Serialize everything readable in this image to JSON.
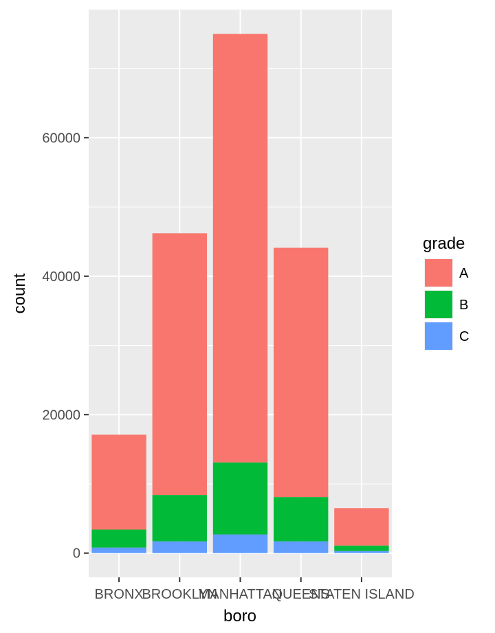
{
  "chart_data": {
    "type": "bar",
    "stacked": true,
    "xlabel": "boro",
    "ylabel": "count",
    "categories": [
      "BRONX",
      "BROOKLYN",
      "MANHATTAN",
      "QUEENS",
      "STATEN ISLAND"
    ],
    "series": [
      {
        "name": "C",
        "color": "#619CFF",
        "values": [
          800,
          1700,
          2700,
          1700,
          300
        ]
      },
      {
        "name": "B",
        "color": "#00BA38",
        "values": [
          2600,
          6700,
          10400,
          6400,
          800
        ]
      },
      {
        "name": "A",
        "color": "#F8766D",
        "values": [
          13700,
          37800,
          61900,
          36000,
          5400
        ]
      }
    ],
    "ylim": [
      -3500,
      78500
    ],
    "yticks": [
      0,
      20000,
      40000,
      60000
    ],
    "ytick_labels": [
      "0",
      "20000",
      "40000",
      "60000"
    ],
    "grid": true,
    "panel_background": "#EBEBEB",
    "legend": {
      "title": "grade",
      "placement": "right",
      "items": [
        {
          "label": "A",
          "color": "#F8766D"
        },
        {
          "label": "B",
          "color": "#00BA38"
        },
        {
          "label": "C",
          "color": "#619CFF"
        }
      ]
    }
  }
}
